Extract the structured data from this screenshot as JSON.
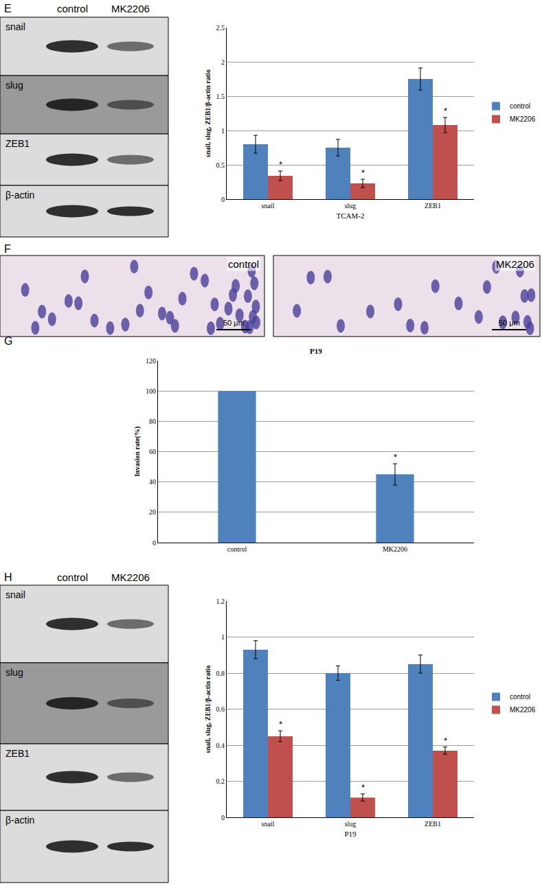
{
  "chart_data": [
    {
      "type": "bar",
      "x_label": "TCAM-2",
      "y_label": "snail, slug, ZEB1/β-actin ratio",
      "categories": [
        "snail",
        "slug",
        "ZEB1"
      ],
      "series": [
        {
          "name": "control",
          "color": "#4f81bd",
          "values": [
            0.8,
            0.75,
            1.75
          ],
          "error": [
            0.13,
            0.12,
            0.16
          ],
          "annotations": [
            null,
            null,
            null
          ]
        },
        {
          "name": "MK2206",
          "color": "#c0504d",
          "values": [
            0.34,
            0.23,
            1.08
          ],
          "error": [
            0.07,
            0.06,
            0.11
          ],
          "annotations": [
            "*",
            "*",
            "*"
          ]
        }
      ],
      "ylim": [
        0,
        2.5
      ],
      "yticks": [
        0,
        0.5,
        1,
        1.5,
        2,
        2.5
      ],
      "grid": true,
      "legend": "right"
    },
    {
      "type": "bar",
      "title": "P19",
      "y_label": "Invasion rate(%)",
      "categories": [
        "control",
        "MK2206"
      ],
      "series": [
        {
          "name": "Invasion rate",
          "color": "#4f81bd",
          "values": [
            100,
            45
          ],
          "error": [
            null,
            7
          ],
          "annotations": [
            null,
            "*"
          ]
        }
      ],
      "ylim": [
        0,
        120
      ],
      "yticks": [
        0,
        20,
        40,
        60,
        80,
        100,
        120
      ],
      "grid": true
    },
    {
      "type": "bar",
      "x_label": "P19",
      "y_label": "snail, slug, ZEB1/β-actin ratio",
      "categories": [
        "snail",
        "slug",
        "ZEB1"
      ],
      "series": [
        {
          "name": "control",
          "color": "#4f81bd",
          "values": [
            0.93,
            0.8,
            0.85
          ],
          "error": [
            0.05,
            0.04,
            0.05
          ],
          "annotations": [
            null,
            null,
            null
          ]
        },
        {
          "name": "MK2206",
          "color": "#c0504d",
          "values": [
            0.45,
            0.11,
            0.37
          ],
          "error": [
            0.03,
            0.02,
            0.02
          ],
          "annotations": [
            "*",
            "*",
            "*"
          ]
        }
      ],
      "ylim": [
        0,
        1.2
      ],
      "yticks": [
        0,
        0.2,
        0.4,
        0.6,
        0.8,
        1,
        1.2
      ],
      "grid": true,
      "legend": "right"
    }
  ],
  "panels": {
    "E": {
      "label": "E",
      "blot": {
        "columns": [
          "control",
          "MK2206"
        ],
        "rows": [
          "snail",
          "slug",
          "ZEB1",
          "β-actin"
        ]
      }
    },
    "F": {
      "label": "F",
      "images": [
        {
          "label": "control",
          "scale_bar": "50 μm"
        },
        {
          "label": "MK2206",
          "scale_bar": "50 μm"
        }
      ]
    },
    "G": {
      "label": "G"
    },
    "H": {
      "label": "H",
      "blot": {
        "columns": [
          "control",
          "MK2206"
        ],
        "rows": [
          "snail",
          "slug",
          "ZEB1",
          "β-actin"
        ]
      }
    }
  }
}
